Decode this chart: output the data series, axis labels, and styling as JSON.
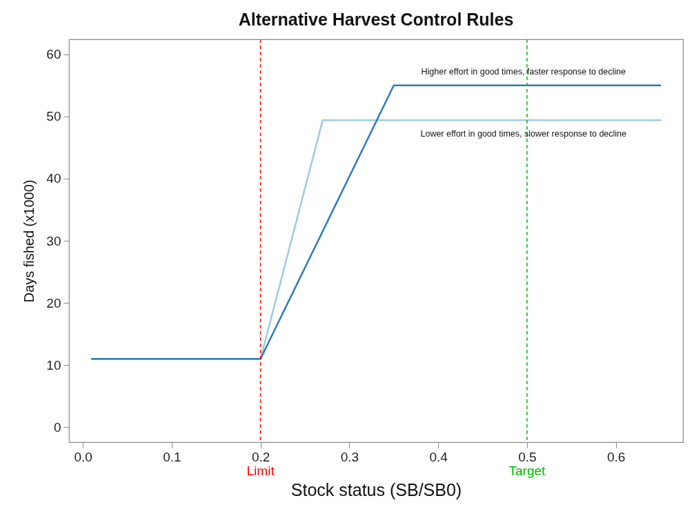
{
  "chart_data": {
    "type": "line",
    "title": "Alternative Harvest Control Rules",
    "xlabel": "Stock status (SB/SB0)",
    "ylabel": "Days fished (x1000)",
    "series": [
      {
        "color": "#9ecae1",
        "x": [
          0.01,
          0.2,
          0.27,
          0.65
        ],
        "values": [
          11,
          11,
          49.4,
          49.4
        ]
      },
      {
        "color": "#2b7bb6",
        "x": [
          0.01,
          0.2,
          0.35,
          0.65
        ],
        "values": [
          11,
          11,
          55,
          55
        ]
      }
    ],
    "xlim": [
      -0.0156,
      0.6756
    ],
    "xticks": [
      {
        "value": 0,
        "label": "0.0"
      },
      {
        "value": 0.1,
        "label": "0.1"
      },
      {
        "value": 0.2,
        "label": "0.2"
      },
      {
        "value": 0.3,
        "label": "0.3"
      },
      {
        "value": 0.4,
        "label": "0.4"
      },
      {
        "value": 0.5,
        "label": "0.5"
      },
      {
        "value": 0.6,
        "label": "0.6"
      }
    ],
    "ylim": [
      -2.4,
      62.4
    ],
    "yticks": [
      0,
      10,
      20,
      30,
      40,
      50,
      60
    ],
    "ref_lines": [
      {
        "axis": "x",
        "value": 0.2,
        "label": "Limit",
        "color": "#ff0000",
        "line_style": "dashed"
      },
      {
        "axis": "x",
        "value": 0.5,
        "label": "Target",
        "color": "#00bb00",
        "line_style": "dashed"
      }
    ],
    "annotations": [
      {
        "text": "Higher effort in good times, faster response to decline",
        "x": 0.496,
        "y": 57.2
      },
      {
        "text": "Lower effort in good times, slower response to decline",
        "x": 0.496,
        "y": 47.2
      }
    ],
    "grid": false,
    "legend": false,
    "marker": "none",
    "line_style": "solid"
  }
}
